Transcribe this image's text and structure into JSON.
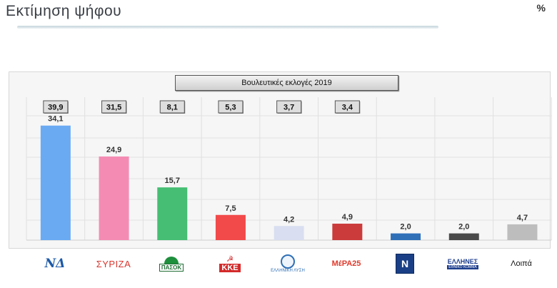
{
  "page_title": "Εκτίμηση ψήφου",
  "unit_sign": "%",
  "reference_banner": "Βουλευτικές εκλογές 2019",
  "chart_data": {
    "type": "bar",
    "categories": [
      "ΝΔ",
      "ΣΥΡΙΖΑ",
      "ΠΑΣΟΚ",
      "ΚΚΕ",
      "Ελληνική Λύση",
      "ΜέΡΑ25",
      "Νίκη",
      "Έλληνες",
      "Λοιπά"
    ],
    "values": [
      34.1,
      24.9,
      15.7,
      7.5,
      4.2,
      4.9,
      2.0,
      2.0,
      4.7
    ],
    "value_labels": [
      "34,1",
      "24,9",
      "15,7",
      "7,5",
      "4,2",
      "4,9",
      "2,0",
      "2,0",
      "4,7"
    ],
    "reference_values": [
      39.9,
      31.5,
      8.1,
      5.3,
      3.7,
      3.4,
      null,
      null,
      null
    ],
    "reference_labels": [
      "39,9",
      "31,5",
      "8,1",
      "5,3",
      "3,7",
      "3,4",
      "",
      "",
      ""
    ],
    "reference_series_name": "Βουλευτικές εκλογές 2019",
    "colors": [
      "#6aaaf3",
      "#f48bb3",
      "#46be73",
      "#f24a4a",
      "#d9def0",
      "#cc3b3b",
      "#2f6fb8",
      "#4a4a4a",
      "#bdbdbd"
    ],
    "ylim": [
      0,
      40
    ],
    "grid": true
  },
  "logos": [
    {
      "name": "nd-logo",
      "text": "ΝΔ"
    },
    {
      "name": "syriza-logo",
      "text": "ΣΥΡΙΖΑ"
    },
    {
      "name": "pasok-logo",
      "text": "ΠΑΣΟΚ"
    },
    {
      "name": "kke-logo",
      "text": "ΚΚΕ",
      "symbol": "☭"
    },
    {
      "name": "elliniki-lysi-logo",
      "text": "ΕΛΛΗΝΙΚΗ ΛΥΣΗ"
    },
    {
      "name": "mera25-logo",
      "text": "ΜέΡΑ",
      "suffix": "25"
    },
    {
      "name": "niki-logo",
      "text": "Ν"
    },
    {
      "name": "ellines-logo",
      "text": "ΕΛΛΗΝΕΣ",
      "subtext": "ΕΘΝΙΚΟ ΚΟΜΜΑ"
    },
    {
      "name": "other-label",
      "text": "Λοιπά"
    }
  ]
}
